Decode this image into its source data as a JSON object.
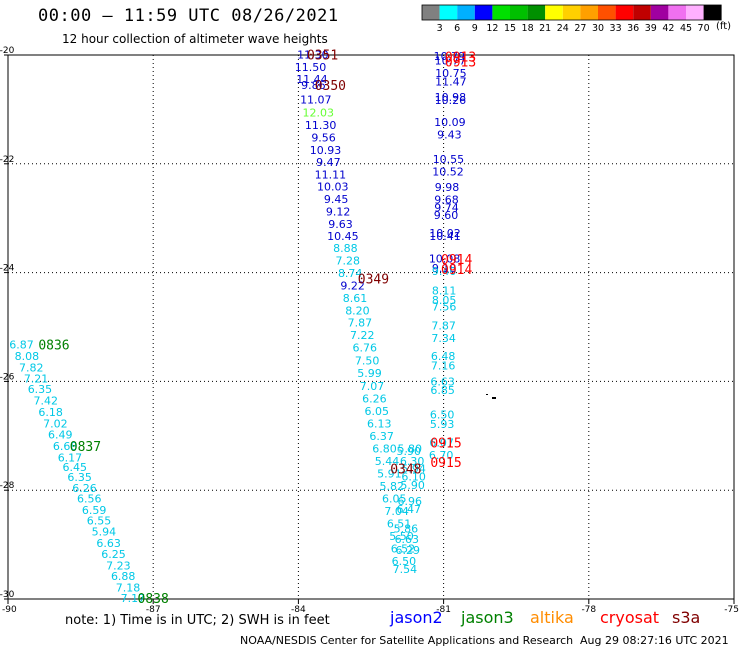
{
  "header": {
    "title": "00:00 – 11:59 UTC 08/26/2021",
    "subtitle": "12 hour collection of altimeter wave heights"
  },
  "colorbar": {
    "units": "(ft)",
    "levels": [
      "3",
      "6",
      "9",
      "12",
      "15",
      "18",
      "21",
      "24",
      "27",
      "30",
      "33",
      "36",
      "39",
      "42",
      "45",
      "70"
    ],
    "colors": [
      "#808080",
      "#00ffff",
      "#00b0ff",
      "#0000ff",
      "#00e000",
      "#00c000",
      "#009000",
      "#ffff00",
      "#ffd000",
      "#ffa000",
      "#ff5000",
      "#ff0000",
      "#c00000",
      "#a000a0",
      "#f070f0",
      "#ffb0ff",
      "#000000"
    ]
  },
  "footer": {
    "note": "note:  1) Time is in UTC;  2) SWH is in feet",
    "credit": "NOAA/NESDIS Center for Satellite Applications and Research",
    "timestamp": "Aug 29 08:27:16 UTC 2021"
  },
  "satellites": [
    {
      "name": "jason2",
      "color": "#0000ff"
    },
    {
      "name": "jason3",
      "color": "#008000"
    },
    {
      "name": "altika",
      "color": "#ff8c00"
    },
    {
      "name": "cryosat",
      "color": "#ff0000"
    },
    {
      "name": "s3a",
      "color": "#800000"
    }
  ],
  "chart_data": {
    "type": "scatter",
    "xlim": [
      -90,
      -75
    ],
    "ylim": [
      -30,
      -20
    ],
    "x_ticks": [
      "-90",
      "-87",
      "-84",
      "-81",
      "-78",
      "-75"
    ],
    "y_ticks": [
      "-20",
      "-22",
      "-24",
      "-26",
      "-28",
      "-30"
    ],
    "grid": true,
    "points": [
      {
        "x": -83.7,
        "y": -19.99,
        "v": "11.30",
        "c": "#0000cd"
      },
      {
        "x": -83.75,
        "y": -20.22,
        "v": "11.50",
        "c": "#0000cd"
      },
      {
        "x": -83.72,
        "y": -20.44,
        "v": "11.44",
        "c": "#0000cd"
      },
      {
        "x": -83.69,
        "y": -20.55,
        "v": "9.86",
        "c": "#0000cd"
      },
      {
        "x": -83.64,
        "y": -20.82,
        "v": "11.07",
        "c": "#0000cd"
      },
      {
        "x": -83.59,
        "y": -21.06,
        "v": "12.03",
        "c": "#66ff33"
      },
      {
        "x": -83.54,
        "y": -21.29,
        "v": "11.30",
        "c": "#0000cd"
      },
      {
        "x": -83.48,
        "y": -21.52,
        "v": "9.56",
        "c": "#0000cd"
      },
      {
        "x": -83.44,
        "y": -21.75,
        "v": "10.93",
        "c": "#0000cd"
      },
      {
        "x": -83.38,
        "y": -21.97,
        "v": "9.47",
        "c": "#0000cd"
      },
      {
        "x": -83.34,
        "y": -22.2,
        "v": "11.11",
        "c": "#0000cd"
      },
      {
        "x": -83.29,
        "y": -22.42,
        "v": "10.03",
        "c": "#0000cd"
      },
      {
        "x": -83.22,
        "y": -22.65,
        "v": "9.45",
        "c": "#0000cd"
      },
      {
        "x": -83.18,
        "y": -22.88,
        "v": "9.12",
        "c": "#0000cd"
      },
      {
        "x": -83.13,
        "y": -23.11,
        "v": "9.63",
        "c": "#0000cd"
      },
      {
        "x": -83.08,
        "y": -23.33,
        "v": "10.45",
        "c": "#0000cd"
      },
      {
        "x": -83.03,
        "y": -23.55,
        "v": "8.88",
        "c": "#00c8e6"
      },
      {
        "x": -82.98,
        "y": -23.78,
        "v": "7.28",
        "c": "#00c8e6"
      },
      {
        "x": -82.93,
        "y": -24.01,
        "v": "8.74",
        "c": "#00c8e6"
      },
      {
        "x": -82.88,
        "y": -24.24,
        "v": "9.22",
        "c": "#0000cd"
      },
      {
        "x": -82.83,
        "y": -24.47,
        "v": "8.61",
        "c": "#00c8e6"
      },
      {
        "x": -82.78,
        "y": -24.7,
        "v": "8.20",
        "c": "#00c8e6"
      },
      {
        "x": -82.73,
        "y": -24.92,
        "v": "7.87",
        "c": "#00c8e6"
      },
      {
        "x": -82.68,
        "y": -25.15,
        "v": "7.22",
        "c": "#00c8e6"
      },
      {
        "x": -82.63,
        "y": -25.38,
        "v": "6.76",
        "c": "#00c8e6"
      },
      {
        "x": -82.58,
        "y": -25.62,
        "v": "7.50",
        "c": "#00c8e6"
      },
      {
        "x": -82.53,
        "y": -25.85,
        "v": "5.99",
        "c": "#00c8e6"
      },
      {
        "x": -82.48,
        "y": -26.08,
        "v": "7.07",
        "c": "#00c8e6"
      },
      {
        "x": -82.43,
        "y": -26.31,
        "v": "6.26",
        "c": "#00c8e6"
      },
      {
        "x": -82.38,
        "y": -26.54,
        "v": "6.05",
        "c": "#00c8e6"
      },
      {
        "x": -82.33,
        "y": -26.77,
        "v": "6.13",
        "c": "#00c8e6"
      },
      {
        "x": -82.28,
        "y": -27.0,
        "v": "6.37",
        "c": "#00c8e6"
      },
      {
        "x": -82.22,
        "y": -27.23,
        "v": "6.80",
        "c": "#00c8e6"
      },
      {
        "x": -82.17,
        "y": -27.46,
        "v": "5.44",
        "c": "#00c8e6"
      },
      {
        "x": -82.12,
        "y": -27.69,
        "v": "5.91",
        "c": "#00c8e6"
      },
      {
        "x": -82.07,
        "y": -27.92,
        "v": "5.82",
        "c": "#00c8e6"
      },
      {
        "x": -82.02,
        "y": -28.15,
        "v": "6.05",
        "c": "#00c8e6"
      },
      {
        "x": -81.97,
        "y": -28.38,
        "v": "7.04",
        "c": "#00c8e6"
      },
      {
        "x": -81.92,
        "y": -28.61,
        "v": "6.51",
        "c": "#00c8e6"
      },
      {
        "x": -81.87,
        "y": -28.84,
        "v": "5.50",
        "c": "#00c8e6"
      },
      {
        "x": -81.84,
        "y": -29.07,
        "v": "6.52",
        "c": "#00c8e6"
      },
      {
        "x": -81.82,
        "y": -29.3,
        "v": "6.50",
        "c": "#00c8e6"
      },
      {
        "x": -81.8,
        "y": -29.45,
        "v": "7.54",
        "c": "#00c8e6"
      },
      {
        "x": -81.7,
        "y": -27.23,
        "v": "5.80",
        "c": "#00c8e6"
      },
      {
        "x": -81.72,
        "y": -27.28,
        "v": "5.90",
        "c": "#00c8e6"
      },
      {
        "x": -81.65,
        "y": -27.46,
        "v": "6.30",
        "c": "#00c8e6"
      },
      {
        "x": -81.62,
        "y": -27.6,
        "v": "5.94",
        "c": "#00c8e6"
      },
      {
        "x": -81.62,
        "y": -27.75,
        "v": "6.10",
        "c": "#00c8e6"
      },
      {
        "x": -81.64,
        "y": -27.9,
        "v": "5.90",
        "c": "#00c8e6"
      },
      {
        "x": -81.7,
        "y": -28.2,
        "v": "6.96",
        "c": "#00c8e6"
      },
      {
        "x": -81.72,
        "y": -28.35,
        "v": "6.47",
        "c": "#00c8e6"
      },
      {
        "x": -81.78,
        "y": -28.7,
        "v": "5.86",
        "c": "#00c8e6"
      },
      {
        "x": -81.76,
        "y": -28.9,
        "v": "6.63",
        "c": "#00c8e6"
      },
      {
        "x": -81.74,
        "y": -29.1,
        "v": "6.29",
        "c": "#00c8e6"
      },
      {
        "x": -80.88,
        "y": -20.02,
        "v": "10.79",
        "c": "#0000cd"
      },
      {
        "x": -80.86,
        "y": -20.1,
        "v": "10.77",
        "c": "#0000cd"
      },
      {
        "x": -80.85,
        "y": -20.33,
        "v": "10.75",
        "c": "#0000cd"
      },
      {
        "x": -80.85,
        "y": -20.49,
        "v": "11.47",
        "c": "#0000cd"
      },
      {
        "x": -80.86,
        "y": -20.77,
        "v": "10.98",
        "c": "#0000cd"
      },
      {
        "x": -80.86,
        "y": -20.83,
        "v": "10.26",
        "c": "#0000cd"
      },
      {
        "x": -80.87,
        "y": -21.23,
        "v": "10.09",
        "c": "#0000cd"
      },
      {
        "x": -80.88,
        "y": -21.46,
        "v": "9.43",
        "c": "#0000cd"
      },
      {
        "x": -80.9,
        "y": -21.91,
        "v": "10.55",
        "c": "#0000cd"
      },
      {
        "x": -80.91,
        "y": -22.14,
        "v": "10.52",
        "c": "#0000cd"
      },
      {
        "x": -80.93,
        "y": -22.43,
        "v": "9.98",
        "c": "#0000cd"
      },
      {
        "x": -80.94,
        "y": -22.66,
        "v": "9.68",
        "c": "#0000cd"
      },
      {
        "x": -80.94,
        "y": -22.8,
        "v": "9.74",
        "c": "#0000cd"
      },
      {
        "x": -80.95,
        "y": -22.94,
        "v": "9.60",
        "c": "#0000cd"
      },
      {
        "x": -80.97,
        "y": -23.27,
        "v": "10.02",
        "c": "#0000cd"
      },
      {
        "x": -80.97,
        "y": -23.33,
        "v": "10.41",
        "c": "#0000cd"
      },
      {
        "x": -80.98,
        "y": -23.74,
        "v": "10.08",
        "c": "#0000cd"
      },
      {
        "x": -80.99,
        "y": -23.92,
        "v": "9.18",
        "c": "#0000cd"
      },
      {
        "x": -80.99,
        "y": -23.97,
        "v": "9.40",
        "c": "#00c8e6"
      },
      {
        "x": -80.99,
        "y": -24.33,
        "v": "8.11",
        "c": "#00c8e6"
      },
      {
        "x": -80.99,
        "y": -24.5,
        "v": "8.05",
        "c": "#00c8e6"
      },
      {
        "x": -80.99,
        "y": -24.62,
        "v": "7.56",
        "c": "#00c8e6"
      },
      {
        "x": -81.0,
        "y": -24.97,
        "v": "7.87",
        "c": "#00c8e6"
      },
      {
        "x": -81.0,
        "y": -25.2,
        "v": "7.34",
        "c": "#00c8e6"
      },
      {
        "x": -81.01,
        "y": -25.53,
        "v": "6.48",
        "c": "#00c8e6"
      },
      {
        "x": -81.01,
        "y": -25.71,
        "v": "7.16",
        "c": "#00c8e6"
      },
      {
        "x": -81.02,
        "y": -26.0,
        "v": "6.63",
        "c": "#00c8e6"
      },
      {
        "x": -81.02,
        "y": -26.16,
        "v": "6.85",
        "c": "#00c8e6"
      },
      {
        "x": -81.03,
        "y": -26.61,
        "v": "6.50",
        "c": "#00c8e6"
      },
      {
        "x": -81.03,
        "y": -26.78,
        "v": "5.93",
        "c": "#00c8e6"
      },
      {
        "x": -81.04,
        "y": -27.12,
        "v": "6.07",
        "c": "#00c8e6"
      },
      {
        "x": -81.05,
        "y": -27.35,
        "v": "6.70",
        "c": "#00c8e6"
      },
      {
        "x": -89.72,
        "y": -25.32,
        "v": "6.87",
        "c": "#00c8e6"
      },
      {
        "x": -89.61,
        "y": -25.53,
        "v": "8.08",
        "c": "#00c8e6"
      },
      {
        "x": -89.52,
        "y": -25.74,
        "v": "7.82",
        "c": "#00c8e6"
      },
      {
        "x": -89.42,
        "y": -25.95,
        "v": "7.21",
        "c": "#00c8e6"
      },
      {
        "x": -89.34,
        "y": -26.14,
        "v": "6.35",
        "c": "#00c8e6"
      },
      {
        "x": -89.22,
        "y": -26.35,
        "v": "7.42",
        "c": "#00c8e6"
      },
      {
        "x": -89.12,
        "y": -26.56,
        "v": "6.18",
        "c": "#00c8e6"
      },
      {
        "x": -89.02,
        "y": -26.77,
        "v": "7.02",
        "c": "#00c8e6"
      },
      {
        "x": -88.92,
        "y": -26.98,
        "v": "6.49",
        "c": "#00c8e6"
      },
      {
        "x": -88.82,
        "y": -27.19,
        "v": "6.68",
        "c": "#00c8e6"
      },
      {
        "x": -88.72,
        "y": -27.4,
        "v": "6.17",
        "c": "#00c8e6"
      },
      {
        "x": -88.62,
        "y": -27.57,
        "v": "6.45",
        "c": "#00c8e6"
      },
      {
        "x": -88.52,
        "y": -27.76,
        "v": "6.35",
        "c": "#00c8e6"
      },
      {
        "x": -88.42,
        "y": -27.96,
        "v": "6.26",
        "c": "#00c8e6"
      },
      {
        "x": -88.32,
        "y": -28.15,
        "v": "6.56",
        "c": "#00c8e6"
      },
      {
        "x": -88.22,
        "y": -28.36,
        "v": "6.59",
        "c": "#00c8e6"
      },
      {
        "x": -88.12,
        "y": -28.56,
        "v": "6.55",
        "c": "#00c8e6"
      },
      {
        "x": -88.02,
        "y": -28.76,
        "v": "5.94",
        "c": "#00c8e6"
      },
      {
        "x": -87.92,
        "y": -28.97,
        "v": "6.63",
        "c": "#00c8e6"
      },
      {
        "x": -87.82,
        "y": -29.17,
        "v": "6.25",
        "c": "#00c8e6"
      },
      {
        "x": -87.72,
        "y": -29.38,
        "v": "7.23",
        "c": "#00c8e6"
      },
      {
        "x": -87.62,
        "y": -29.58,
        "v": "6.88",
        "c": "#00c8e6"
      },
      {
        "x": -87.52,
        "y": -29.79,
        "v": "7.18",
        "c": "#00c8e6"
      },
      {
        "x": -87.42,
        "y": -29.98,
        "v": "7.17",
        "c": "#00c8e6"
      }
    ],
    "time_labels": [
      {
        "x": -83.5,
        "y": -19.99,
        "v": "0351",
        "c": "#800000"
      },
      {
        "x": -83.34,
        "y": -20.55,
        "v": "0350",
        "c": "#800000"
      },
      {
        "x": -82.45,
        "y": -24.11,
        "v": "0349",
        "c": "#800000"
      },
      {
        "x": -81.78,
        "y": -27.6,
        "v": "0348",
        "c": "#800000"
      },
      {
        "x": -80.65,
        "y": -20.03,
        "v": "0913",
        "c": "#ff0000"
      },
      {
        "x": -80.65,
        "y": -20.12,
        "v": "0913",
        "c": "#ff0000"
      },
      {
        "x": -80.73,
        "y": -23.75,
        "v": "0914",
        "c": "#ff0000"
      },
      {
        "x": -80.73,
        "y": -23.93,
        "v": "0914",
        "c": "#ff0000"
      },
      {
        "x": -80.95,
        "y": -27.12,
        "v": "0915",
        "c": "#ff0000"
      },
      {
        "x": -80.95,
        "y": -27.48,
        "v": "0915",
        "c": "#ff0000"
      },
      {
        "x": -89.05,
        "y": -25.32,
        "v": "0836",
        "c": "#008000"
      },
      {
        "x": -88.4,
        "y": -27.19,
        "v": "0837",
        "c": "#008000"
      },
      {
        "x": -87.0,
        "y": -29.98,
        "v": "0838",
        "c": "#008000"
      }
    ]
  }
}
